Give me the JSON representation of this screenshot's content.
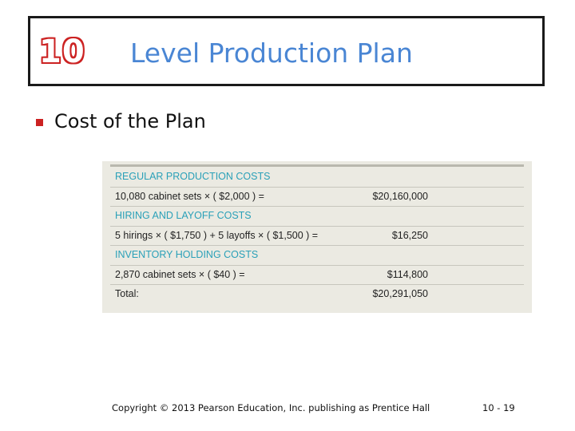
{
  "header": {
    "chapter_number": "10",
    "title": "Level Production Plan"
  },
  "bullet": {
    "text": "Cost of the Plan"
  },
  "table": {
    "rows": [
      {
        "type": "header",
        "desc": "REGULAR PRODUCTION COSTS",
        "amount": ""
      },
      {
        "type": "data",
        "desc": "10,080 cabinet sets × ( $2,000 ) =",
        "amount": "$20,160,000"
      },
      {
        "type": "header",
        "desc": "HIRING AND LAYOFF COSTS",
        "amount": ""
      },
      {
        "type": "data",
        "desc": "5 hirings × ( $1,750 ) + 5 layoffs × ( $1,500 ) =",
        "amount": "$16,250"
      },
      {
        "type": "header",
        "desc": "INVENTORY HOLDING COSTS",
        "amount": ""
      },
      {
        "type": "data",
        "desc": "2,870 cabinet sets × ( $40 ) =",
        "amount": "$114,800"
      },
      {
        "type": "total",
        "desc": "Total:",
        "amount": "$20,291,050"
      }
    ]
  },
  "footer": {
    "copyright": "Copyright © 2013 Pearson Education, Inc. publishing as Prentice Hall",
    "page": "10 - 19"
  },
  "colors": {
    "title": "#4a86d4",
    "chapter_number": "#cc2222",
    "bullet": "#cc2222",
    "table_header_text": "#2aa0b8",
    "table_background": "#ebeae2"
  }
}
